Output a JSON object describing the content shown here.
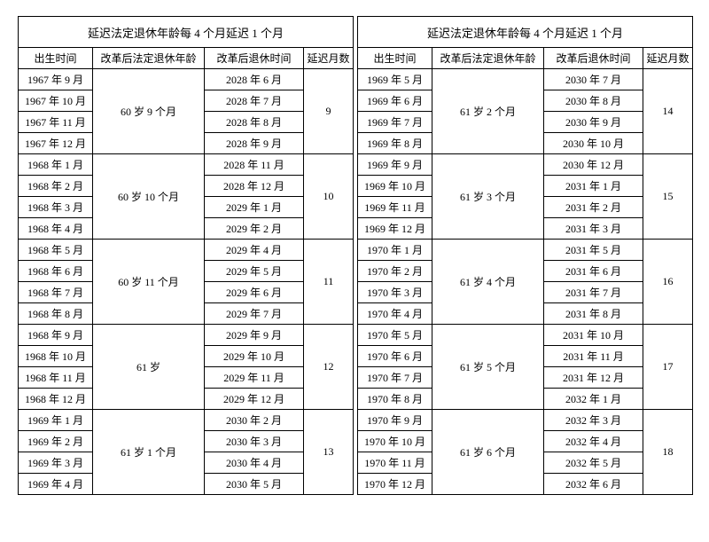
{
  "title": "延迟法定退休年龄每 4 个月延迟 1 个月",
  "headers": {
    "birth": "出生时间",
    "age": "改革后法定退休年龄",
    "retire": "改革后退休时间",
    "delay": "延迟月数"
  },
  "left": [
    {
      "age": "60 岁 9 个月",
      "delay": "9",
      "rows": [
        {
          "birth": "1967 年 9 月",
          "retire": "2028 年 6 月"
        },
        {
          "birth": "1967 年 10 月",
          "retire": "2028 年 7 月"
        },
        {
          "birth": "1967 年 11 月",
          "retire": "2028 年 8 月"
        },
        {
          "birth": "1967 年 12 月",
          "retire": "2028 年 9 月"
        }
      ]
    },
    {
      "age": "60 岁 10 个月",
      "delay": "10",
      "rows": [
        {
          "birth": "1968 年 1 月",
          "retire": "2028 年 11 月"
        },
        {
          "birth": "1968 年 2 月",
          "retire": "2028 年 12 月"
        },
        {
          "birth": "1968 年 3 月",
          "retire": "2029 年 1 月"
        },
        {
          "birth": "1968 年 4 月",
          "retire": "2029 年 2 月"
        }
      ]
    },
    {
      "age": "60 岁 11 个月",
      "delay": "11",
      "rows": [
        {
          "birth": "1968 年 5 月",
          "retire": "2029 年 4 月"
        },
        {
          "birth": "1968 年 6 月",
          "retire": "2029 年 5 月"
        },
        {
          "birth": "1968 年 7 月",
          "retire": "2029 年 6 月"
        },
        {
          "birth": "1968 年 8 月",
          "retire": "2029 年 7 月"
        }
      ]
    },
    {
      "age": "61 岁",
      "delay": "12",
      "rows": [
        {
          "birth": "1968 年 9 月",
          "retire": "2029 年 9 月"
        },
        {
          "birth": "1968 年 10 月",
          "retire": "2029 年 10 月"
        },
        {
          "birth": "1968 年 11 月",
          "retire": "2029 年 11 月"
        },
        {
          "birth": "1968 年 12 月",
          "retire": "2029 年 12 月"
        }
      ]
    },
    {
      "age": "61 岁 1 个月",
      "delay": "13",
      "rows": [
        {
          "birth": "1969 年 1 月",
          "retire": "2030 年 2 月"
        },
        {
          "birth": "1969 年 2 月",
          "retire": "2030 年 3 月"
        },
        {
          "birth": "1969 年 3 月",
          "retire": "2030 年 4 月"
        },
        {
          "birth": "1969 年 4 月",
          "retire": "2030 年 5 月"
        }
      ]
    }
  ],
  "right": [
    {
      "age": "61 岁 2 个月",
      "delay": "14",
      "rows": [
        {
          "birth": "1969 年 5 月",
          "retire": "2030 年 7 月"
        },
        {
          "birth": "1969 年 6 月",
          "retire": "2030 年 8 月"
        },
        {
          "birth": "1969 年 7 月",
          "retire": "2030 年 9 月"
        },
        {
          "birth": "1969 年 8 月",
          "retire": "2030 年 10 月"
        }
      ]
    },
    {
      "age": "61 岁 3 个月",
      "delay": "15",
      "rows": [
        {
          "birth": "1969 年 9 月",
          "retire": "2030 年 12 月"
        },
        {
          "birth": "1969 年 10 月",
          "retire": "2031 年 1 月"
        },
        {
          "birth": "1969 年 11 月",
          "retire": "2031 年 2 月"
        },
        {
          "birth": "1969 年 12 月",
          "retire": "2031 年 3 月"
        }
      ]
    },
    {
      "age": "61 岁 4 个月",
      "delay": "16",
      "rows": [
        {
          "birth": "1970 年 1 月",
          "retire": "2031 年 5 月"
        },
        {
          "birth": "1970 年 2 月",
          "retire": "2031 年 6 月"
        },
        {
          "birth": "1970 年 3 月",
          "retire": "2031 年 7 月"
        },
        {
          "birth": "1970 年 4 月",
          "retire": "2031 年 8 月"
        }
      ]
    },
    {
      "age": "61 岁 5 个月",
      "delay": "17",
      "rows": [
        {
          "birth": "1970 年 5 月",
          "retire": "2031 年 10 月"
        },
        {
          "birth": "1970 年 6 月",
          "retire": "2031 年 11 月"
        },
        {
          "birth": "1970 年 7 月",
          "retire": "2031 年 12 月"
        },
        {
          "birth": "1970 年 8 月",
          "retire": "2032 年 1 月"
        }
      ]
    },
    {
      "age": "61 岁 6 个月",
      "delay": "18",
      "rows": [
        {
          "birth": "1970 年 9 月",
          "retire": "2032 年 3 月"
        },
        {
          "birth": "1970 年 10 月",
          "retire": "2032 年 4 月"
        },
        {
          "birth": "1970 年 11 月",
          "retire": "2032 年 5 月"
        },
        {
          "birth": "1970 年 12 月",
          "retire": "2032 年 6 月"
        }
      ]
    }
  ]
}
